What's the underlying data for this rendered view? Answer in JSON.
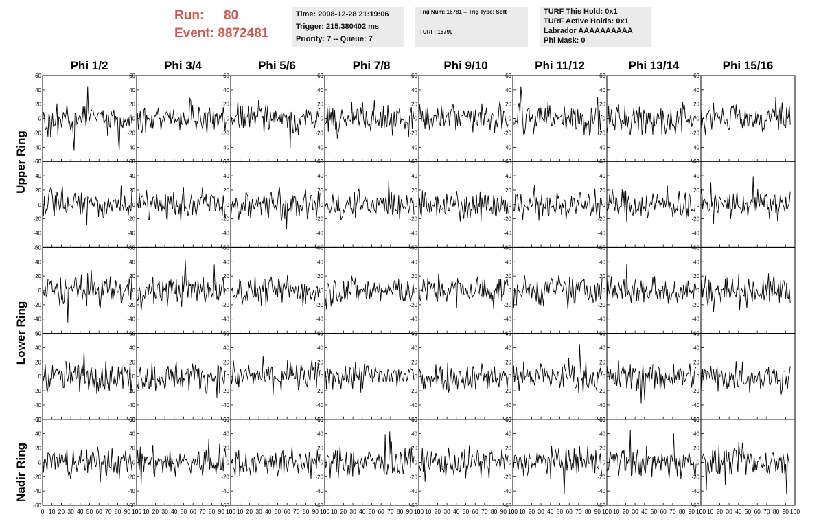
{
  "header": {
    "run_label": "Run:",
    "run_value": "80",
    "event_label": "Event:",
    "event_value": "8872481"
  },
  "info_boxes": {
    "time": "Time: 2008-12-28 21:19:06",
    "trigger": "Trigger: 215.380402 ms",
    "priority": "Priority: 7 -- Queue: 7",
    "trig_num": "Trig Num: 16781 -- Trig Type: Soft",
    "turf": "TURF: 16790",
    "turf_hold": "TURF This Hold: 0x1",
    "turf_active": "TURF Active Holds: 0x1",
    "labrador": "Labrador AAAAAAAAAA",
    "phi_mask": "Phi Mask: 0"
  },
  "column_titles": [
    "Phi 1/2",
    "Phi 3/4",
    "Phi 5/6",
    "Phi 7/8",
    "Phi 9/10",
    "Phi 11/12",
    "Phi 13/14",
    "Phi 15/16"
  ],
  "ring_labels": {
    "upper": "Upper Ring",
    "lower": "Lower Ring",
    "nadir": "Nadir Ring"
  },
  "chart_data": {
    "type": "line",
    "grid": false,
    "rows": 5,
    "columns": 8,
    "xlim": [
      0,
      100
    ],
    "ylim": [
      -60,
      60
    ],
    "x_ticks": [
      0,
      10,
      20,
      30,
      40,
      50,
      60,
      70,
      80,
      90,
      100
    ],
    "y_ticks": [
      -60,
      -40,
      -20,
      0,
      20,
      40,
      60
    ],
    "x_tick_labels": [
      "0",
      "10",
      "20",
      "30",
      "40",
      "50",
      "60",
      "70",
      "80",
      "90",
      "100"
    ],
    "y_tick_labels": [
      "-60",
      "-40",
      "-20",
      "0",
      "20",
      "40",
      "60"
    ],
    "samples_per_trace": 100,
    "trace_amplitude_typical": 15,
    "trace_amplitude_max": 45,
    "trace_color": "#000000"
  }
}
